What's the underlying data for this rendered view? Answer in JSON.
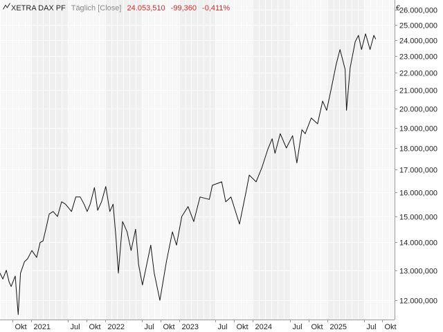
{
  "header": {
    "instrument": "XETRA DAX PF",
    "mode": "Täglich [Close]",
    "last": "24.053,510",
    "change": "-99,360",
    "change_pct": "-0,411%",
    "currency": "€"
  },
  "colors": {
    "line": "#111111",
    "band_light": "#f7f7f7",
    "band_dark": "#efefef",
    "grid": "#ffffff",
    "axis": "#9a9a9a",
    "negative": "#cc2a2a"
  },
  "chart_data": {
    "type": "line",
    "title": "XETRA DAX PF",
    "y_scale": "log",
    "ylim": [
      11400,
      26700
    ],
    "xlim": [
      "2020-08-01",
      "2025-11-30"
    ],
    "grid": "vertical month bands, horizontal gridlines",
    "y_ticks": [
      {
        "value": 12000,
        "label": "12.000,000"
      },
      {
        "value": 13000,
        "label": "13.000,000"
      },
      {
        "value": 14000,
        "label": "14.000,000"
      },
      {
        "value": 15000,
        "label": "15.000,000"
      },
      {
        "value": 16000,
        "label": "16.000,000"
      },
      {
        "value": 17000,
        "label": "17.000,000"
      },
      {
        "value": 18000,
        "label": "18.000,000"
      },
      {
        "value": 19000,
        "label": "19.000,000"
      },
      {
        "value": 20000,
        "label": "20.000,000"
      },
      {
        "value": 21000,
        "label": "21.000,000"
      },
      {
        "value": 22000,
        "label": "22.000,000"
      },
      {
        "value": 23000,
        "label": "23.000,000"
      },
      {
        "value": 24000,
        "label": "24.000,000"
      },
      {
        "value": 25000,
        "label": "25.000,000"
      },
      {
        "value": 26000,
        "label": "26.000,000"
      }
    ],
    "x_ticks": [
      {
        "date": "2020-10-01",
        "label": "Okt"
      },
      {
        "date": "2021-01-01",
        "label": "2021"
      },
      {
        "date": "2021-07-01",
        "label": "Jul"
      },
      {
        "date": "2021-10-01",
        "label": "Okt"
      },
      {
        "date": "2022-01-01",
        "label": "2022"
      },
      {
        "date": "2022-07-01",
        "label": "Jul"
      },
      {
        "date": "2022-10-01",
        "label": "Okt"
      },
      {
        "date": "2023-01-01",
        "label": "2023"
      },
      {
        "date": "2023-07-01",
        "label": "Jul"
      },
      {
        "date": "2023-10-01",
        "label": "Okt"
      },
      {
        "date": "2024-01-01",
        "label": "2024"
      },
      {
        "date": "2024-07-01",
        "label": "Jul"
      },
      {
        "date": "2024-10-01",
        "label": "Okt"
      },
      {
        "date": "2025-01-01",
        "label": "2025"
      },
      {
        "date": "2025-07-01",
        "label": "Jul"
      },
      {
        "date": "2025-10-01",
        "label": "Okt"
      }
    ],
    "series": [
      {
        "color": "#111111",
        "points": [
          [
            "2020-08-01",
            12900
          ],
          [
            "2020-08-15",
            12700
          ],
          [
            "2020-09-01",
            13000
          ],
          [
            "2020-09-15",
            12600
          ],
          [
            "2020-09-25",
            12450
          ],
          [
            "2020-10-15",
            12800
          ],
          [
            "2020-10-30",
            11550
          ],
          [
            "2020-11-10",
            12900
          ],
          [
            "2020-11-30",
            13300
          ],
          [
            "2020-12-15",
            13400
          ],
          [
            "2021-01-05",
            13700
          ],
          [
            "2021-01-29",
            13450
          ],
          [
            "2021-02-15",
            14000
          ],
          [
            "2021-03-01",
            14050
          ],
          [
            "2021-03-15",
            14500
          ],
          [
            "2021-04-01",
            15100
          ],
          [
            "2021-04-20",
            15200
          ],
          [
            "2021-05-12",
            15000
          ],
          [
            "2021-06-01",
            15600
          ],
          [
            "2021-06-20",
            15500
          ],
          [
            "2021-07-20",
            15200
          ],
          [
            "2021-08-10",
            15800
          ],
          [
            "2021-09-01",
            15800
          ],
          [
            "2021-09-20",
            15500
          ],
          [
            "2021-10-05",
            15200
          ],
          [
            "2021-10-20",
            15500
          ],
          [
            "2021-11-10",
            16200
          ],
          [
            "2021-11-26",
            15250
          ],
          [
            "2021-12-15",
            15600
          ],
          [
            "2022-01-05",
            16250
          ],
          [
            "2022-01-25",
            15200
          ],
          [
            "2022-02-10",
            15500
          ],
          [
            "2022-02-24",
            14200
          ],
          [
            "2022-03-08",
            12900
          ],
          [
            "2022-03-29",
            14800
          ],
          [
            "2022-04-20",
            14400
          ],
          [
            "2022-05-10",
            13700
          ],
          [
            "2022-06-01",
            14500
          ],
          [
            "2022-06-16",
            13200
          ],
          [
            "2022-07-05",
            12500
          ],
          [
            "2022-08-15",
            13900
          ],
          [
            "2022-09-01",
            12900
          ],
          [
            "2022-09-29",
            12000
          ],
          [
            "2022-10-31",
            13300
          ],
          [
            "2022-11-30",
            14400
          ],
          [
            "2022-12-20",
            13900
          ],
          [
            "2023-01-15",
            15000
          ],
          [
            "2023-02-15",
            15400
          ],
          [
            "2023-03-15",
            14800
          ],
          [
            "2023-04-15",
            15800
          ],
          [
            "2023-05-31",
            15700
          ],
          [
            "2023-06-15",
            16300
          ],
          [
            "2023-07-31",
            16450
          ],
          [
            "2023-08-20",
            15600
          ],
          [
            "2023-09-15",
            15800
          ],
          [
            "2023-10-27",
            14700
          ],
          [
            "2023-11-30",
            16100
          ],
          [
            "2023-12-14",
            16750
          ],
          [
            "2024-01-17",
            16450
          ],
          [
            "2024-02-15",
            17100
          ],
          [
            "2024-03-15",
            17950
          ],
          [
            "2024-04-05",
            18450
          ],
          [
            "2024-04-19",
            17750
          ],
          [
            "2024-05-15",
            18700
          ],
          [
            "2024-06-14",
            18000
          ],
          [
            "2024-07-15",
            18600
          ],
          [
            "2024-08-05",
            17300
          ],
          [
            "2024-08-30",
            18900
          ],
          [
            "2024-09-15",
            18700
          ],
          [
            "2024-10-15",
            19500
          ],
          [
            "2024-11-15",
            19200
          ],
          [
            "2024-12-10",
            20400
          ],
          [
            "2024-12-30",
            19900
          ],
          [
            "2025-01-20",
            21000
          ],
          [
            "2025-02-15",
            22500
          ],
          [
            "2025-03-06",
            23400
          ],
          [
            "2025-03-31",
            22200
          ],
          [
            "2025-04-07",
            19900
          ],
          [
            "2025-04-25",
            22300
          ],
          [
            "2025-05-20",
            23900
          ],
          [
            "2025-06-05",
            24300
          ],
          [
            "2025-06-20",
            23400
          ],
          [
            "2025-07-10",
            24400
          ],
          [
            "2025-08-01",
            23400
          ],
          [
            "2025-08-20",
            24300
          ],
          [
            "2025-08-29",
            24050
          ]
        ]
      }
    ]
  }
}
